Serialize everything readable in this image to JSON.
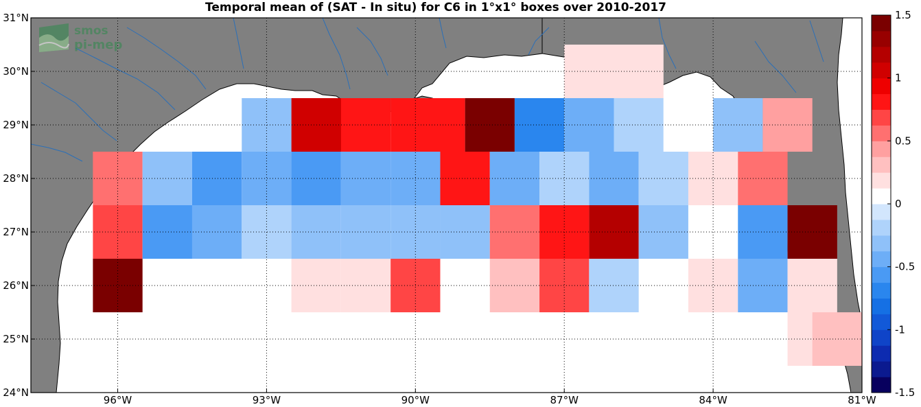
{
  "title": "Temporal mean of (SAT - In situ) for C6 in 1°x1° boxes over 2010-2017",
  "logo": {
    "line1": "smos",
    "line2": "pi-mep",
    "icon": "wave-logo-icon"
  },
  "colors": {
    "land": "#808080",
    "ocean": "#ffffff",
    "coast": "#000000",
    "rivers": "#2a6fb8",
    "grid": "#000000"
  },
  "chart_data": {
    "type": "heatmap",
    "title": "Temporal mean of (SAT - In situ) for C6 in 1°x1° boxes over 2010-2017",
    "x_ticks": [
      {
        "value": -96,
        "label": "96°W"
      },
      {
        "value": -93,
        "label": "93°W"
      },
      {
        "value": -90,
        "label": "90°W"
      },
      {
        "value": -87,
        "label": "87°W"
      },
      {
        "value": -84,
        "label": "84°W"
      },
      {
        "value": -81,
        "label": "81°W"
      }
    ],
    "y_ticks": [
      {
        "value": 24,
        "label": "24°N"
      },
      {
        "value": 25,
        "label": "25°N"
      },
      {
        "value": 26,
        "label": "26°N"
      },
      {
        "value": 27,
        "label": "27°N"
      },
      {
        "value": 28,
        "label": "28°N"
      },
      {
        "value": 29,
        "label": "29°N"
      },
      {
        "value": 30,
        "label": "30°N"
      },
      {
        "value": 31,
        "label": "31°N"
      }
    ],
    "xlim": [
      -97.75,
      -81
    ],
    "ylim": [
      24,
      31
    ],
    "grid": true,
    "colorbar": {
      "range": [
        -1.5,
        1.5
      ],
      "levels": 24,
      "ticks": [
        {
          "value": 1.5,
          "label": "1.5"
        },
        {
          "value": 1,
          "label": "1"
        },
        {
          "value": 0.5,
          "label": "0.5"
        },
        {
          "value": 0,
          "label": "0"
        },
        {
          "value": -0.5,
          "label": "-0.5"
        },
        {
          "value": -1,
          "label": "-1"
        },
        {
          "value": -1.5,
          "label": "-1.5"
        }
      ],
      "colors": [
        "#08005e",
        "#0b1a8f",
        "#0d2bb0",
        "#0f44c8",
        "#1259d8",
        "#1570e4",
        "#2a86ee",
        "#4a9af4",
        "#6daef7",
        "#8fc1f9",
        "#afd3fb",
        "#d2e6fd",
        "#ffffff",
        "#ffe0e0",
        "#ffc0c0",
        "#ffa0a0",
        "#ff7070",
        "#ff4545",
        "#ff1515",
        "#ee0000",
        "#d00000",
        "#b40000",
        "#980000",
        "#7a0000"
      ]
    },
    "cells": [
      {
        "lon": -91.5,
        "lat": 29.0,
        "value": 1.0
      },
      {
        "lon": -92.0,
        "lat": 29.0,
        "value": 1.0
      },
      {
        "lon": -91.0,
        "lat": 29.0,
        "value": 0.82
      },
      {
        "lon": -90.0,
        "lat": 29.0,
        "value": 0.82
      },
      {
        "lon": -89.5,
        "lat": 29.0,
        "value": 0.82
      },
      {
        "lon": -93.0,
        "lat": 29.0,
        "value": -0.28
      },
      {
        "lon": -88.5,
        "lat": 29.0,
        "value": 1.45
      },
      {
        "lon": -87.5,
        "lat": 29.0,
        "value": -0.75
      },
      {
        "lon": -86.5,
        "lat": 29.0,
        "value": -0.4
      },
      {
        "lon": -85.5,
        "lat": 29.0,
        "value": -0.22
      },
      {
        "lon": -84.5,
        "lat": 29.0,
        "value": 0.02
      },
      {
        "lon": -83.5,
        "lat": 29.0,
        "value": -0.33
      },
      {
        "lon": -82.5,
        "lat": 29.0,
        "value": 0.45
      },
      {
        "lon": -86.5,
        "lat": 30.0,
        "value": 0.15
      },
      {
        "lon": -85.5,
        "lat": 30.0,
        "value": 0.15
      },
      {
        "lon": -96.0,
        "lat": 28.0,
        "value": 0.55
      },
      {
        "lon": -95.0,
        "lat": 28.0,
        "value": -0.28
      },
      {
        "lon": -94.0,
        "lat": 28.0,
        "value": -0.55
      },
      {
        "lon": -93.0,
        "lat": 28.0,
        "value": -0.4
      },
      {
        "lon": -92.0,
        "lat": 28.0,
        "value": -0.55
      },
      {
        "lon": -91.0,
        "lat": 28.0,
        "value": -0.4
      },
      {
        "lon": -90.0,
        "lat": 28.0,
        "value": -0.4
      },
      {
        "lon": -89.0,
        "lat": 28.0,
        "value": 0.82
      },
      {
        "lon": -88.0,
        "lat": 28.0,
        "value": -0.45
      },
      {
        "lon": -87.0,
        "lat": 28.0,
        "value": -0.18
      },
      {
        "lon": -86.0,
        "lat": 28.0,
        "value": -0.4
      },
      {
        "lon": -85.0,
        "lat": 28.0,
        "value": -0.18
      },
      {
        "lon": -84.0,
        "lat": 28.0,
        "value": 0.15
      },
      {
        "lon": -83.0,
        "lat": 28.0,
        "value": 0.55
      },
      {
        "lon": -96.0,
        "lat": 27.0,
        "value": 0.7
      },
      {
        "lon": -95.0,
        "lat": 27.0,
        "value": -0.55
      },
      {
        "lon": -94.0,
        "lat": 27.0,
        "value": -0.4
      },
      {
        "lon": -93.0,
        "lat": 27.0,
        "value": -0.18
      },
      {
        "lon": -92.0,
        "lat": 27.0,
        "value": -0.28
      },
      {
        "lon": -91.0,
        "lat": 27.0,
        "value": -0.28
      },
      {
        "lon": -90.0,
        "lat": 27.0,
        "value": -0.28
      },
      {
        "lon": -89.0,
        "lat": 27.0,
        "value": -0.28
      },
      {
        "lon": -88.0,
        "lat": 27.0,
        "value": 0.55
      },
      {
        "lon": -87.0,
        "lat": 27.0,
        "value": 0.85
      },
      {
        "lon": -86.0,
        "lat": 27.0,
        "value": 1.15
      },
      {
        "lon": -85.0,
        "lat": 27.0,
        "value": -0.28
      },
      {
        "lon": -84.0,
        "lat": 27.0,
        "value": 0.02
      },
      {
        "lon": -83.0,
        "lat": 27.0,
        "value": -0.55
      },
      {
        "lon": -82.0,
        "lat": 27.0,
        "value": 1.45
      },
      {
        "lon": -96.0,
        "lat": 26.0,
        "value": 1.45
      },
      {
        "lon": -92.0,
        "lat": 26.0,
        "value": 0.15
      },
      {
        "lon": -91.0,
        "lat": 26.0,
        "value": 0.15
      },
      {
        "lon": -90.0,
        "lat": 26.0,
        "value": 0.7
      },
      {
        "lon": -88.0,
        "lat": 26.0,
        "value": 0.3
      },
      {
        "lon": -87.0,
        "lat": 26.0,
        "value": 0.7
      },
      {
        "lon": -86.0,
        "lat": 26.0,
        "value": -0.18
      },
      {
        "lon": -84.0,
        "lat": 26.0,
        "value": 0.15
      },
      {
        "lon": -83.0,
        "lat": 26.0,
        "value": -0.45
      },
      {
        "lon": -82.0,
        "lat": 26.0,
        "value": 0.15
      },
      {
        "lon": -82.0,
        "lat": 25.0,
        "value": 0.15
      },
      {
        "lon": -81.5,
        "lat": 25.0,
        "value": 0.3
      }
    ]
  }
}
